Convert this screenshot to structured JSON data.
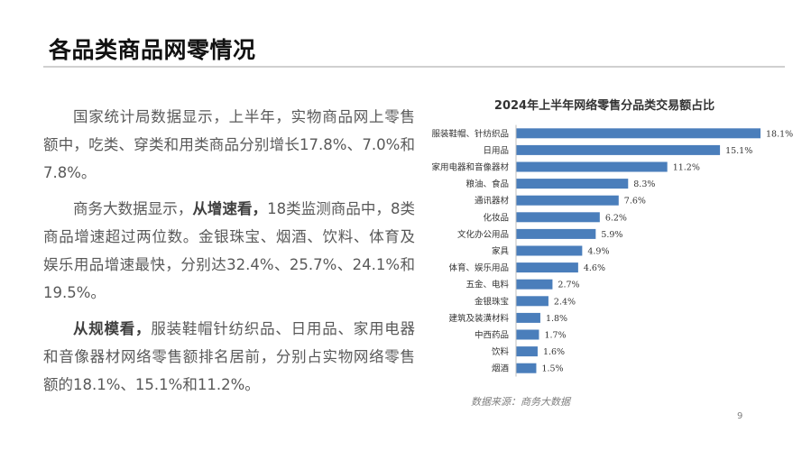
{
  "slide": {
    "title": "各品类商品网零情况",
    "page_number": "9",
    "paragraphs": [
      [
        {
          "text": "国家统计局数据显示，上半年，实物商品网上零售额中，吃类、穿类和用类商品分别增长17.8%、7.0%和7.8%。",
          "bold": false
        }
      ],
      [
        {
          "text": "商务大数据显示，",
          "bold": false
        },
        {
          "text": "从增速看，",
          "bold": true
        },
        {
          "text": "18类监测商品中，8类商品增速超过两位数。金银珠宝、烟酒、饮料、体育及娱乐用品增速最快，分别达32.4%、25.7%、24.1%和19.5%。",
          "bold": false
        }
      ],
      [
        {
          "text": "从规模看，",
          "bold": true
        },
        {
          "text": "服装鞋帽针纺织品、日用品、家用电器和音像器材网络零售额排名居前，分别占实物网络零售额的18.1%、15.1%和11.2%。",
          "bold": false
        }
      ]
    ],
    "source": "数据来源：商务大数据"
  },
  "chart_data": {
    "type": "bar",
    "orientation": "horizontal",
    "title": "2024年上半年网络零售分品类交易额占比",
    "categories": [
      "服装鞋帽、针纺织品",
      "日用品",
      "家用电器和音像器材",
      "粮油、食品",
      "通讯器材",
      "化妆品",
      "文化办公用品",
      "家具",
      "体育、娱乐用品",
      "五金、电料",
      "金银珠宝",
      "建筑及装潢材料",
      "中西药品",
      "饮料",
      "烟酒"
    ],
    "values": [
      18.1,
      15.1,
      11.2,
      8.3,
      7.6,
      6.2,
      5.9,
      4.9,
      4.6,
      2.7,
      2.4,
      1.8,
      1.7,
      1.6,
      1.5
    ],
    "data_labels": [
      "18.1%",
      "15.1%",
      "11.2%",
      "8.3%",
      "7.6%",
      "6.2%",
      "5.9%",
      "4.9%",
      "4.6%",
      "2.7%",
      "2.4%",
      "1.8%",
      "1.7%",
      "1.6%",
      "1.5%"
    ],
    "unit": "%",
    "xlim": [
      0,
      18.1
    ],
    "grid": false,
    "legend": "none",
    "bar_color": "#4a7ebb"
  }
}
